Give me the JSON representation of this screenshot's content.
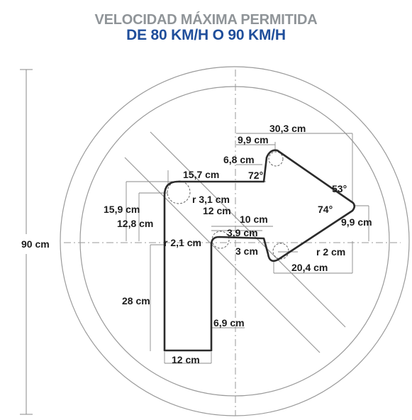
{
  "title": {
    "line1": "VELOCIDAD MÁXIMA PERMITIDA",
    "line2": "DE 80 KM/H O 90 KM/H"
  },
  "colors": {
    "title_gray": "#8f9498",
    "title_blue": "#1f4e9b",
    "sign_outline": "#9a9a9a",
    "arrow_outline": "#2b2b2b",
    "dimension_lines": "#8a8a8a"
  },
  "dimensions": {
    "overall_height": "90 cm",
    "arrow_width_top": "30,3 cm",
    "head_top_offset": "9,9 cm",
    "head_inner": "6,8 cm",
    "arm_length": "15,7 cm",
    "angle_72": "72°",
    "angle_53": "53°",
    "angle_74": "74°",
    "corner_radius_top": "r 3,1 cm",
    "arm_height": "15,9 cm",
    "arm_inner": "12,8 cm",
    "arm_thickness": "12 cm",
    "head_lower": "10 cm",
    "notch": "3,9 cm",
    "corner_radius_inner": "r 2,1 cm",
    "tip_offset": "9,9 cm",
    "tip_bottom": "3 cm",
    "corner_radius_tip": "r 2 cm",
    "head_bottom_width": "20,4 cm",
    "stem_height": "28 cm",
    "stem_offset": "6,9 cm",
    "stem_width": "12 cm"
  }
}
